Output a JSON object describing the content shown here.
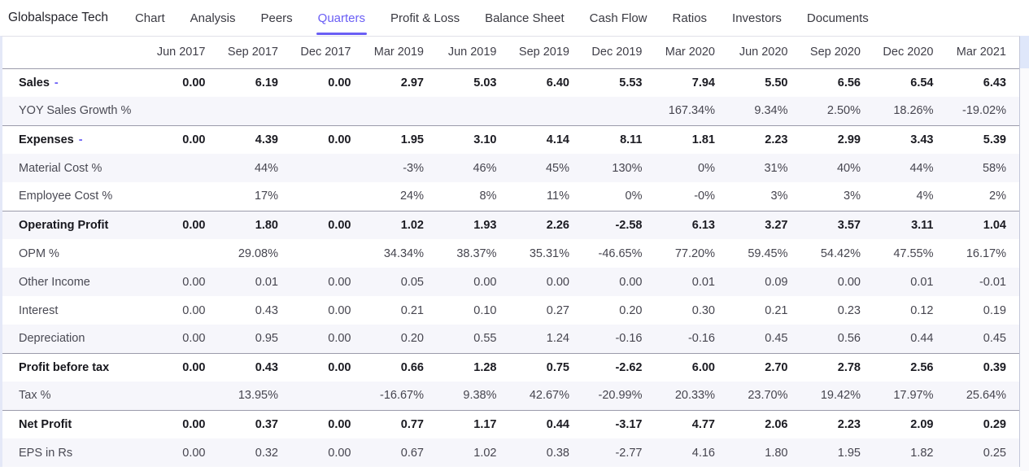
{
  "nav": {
    "company": "Globalspace Tech",
    "tabs": [
      {
        "label": "Chart",
        "active": false
      },
      {
        "label": "Analysis",
        "active": false
      },
      {
        "label": "Peers",
        "active": false
      },
      {
        "label": "Quarters",
        "active": true
      },
      {
        "label": "Profit & Loss",
        "active": false
      },
      {
        "label": "Balance Sheet",
        "active": false
      },
      {
        "label": "Cash Flow",
        "active": false
      },
      {
        "label": "Ratios",
        "active": false
      },
      {
        "label": "Investors",
        "active": false
      },
      {
        "label": "Documents",
        "active": false
      }
    ]
  },
  "table": {
    "columns": [
      "Jun 2017",
      "Sep 2017",
      "Dec 2017",
      "Mar 2019",
      "Jun 2019",
      "Sep 2019",
      "Dec 2019",
      "Mar 2020",
      "Jun 2020",
      "Sep 2020",
      "Dec 2020",
      "Mar 2021"
    ],
    "rows": [
      {
        "label": "Sales",
        "suffix": "-",
        "section": true,
        "values": [
          "0.00",
          "6.19",
          "0.00",
          "2.97",
          "5.03",
          "6.40",
          "5.53",
          "7.94",
          "5.50",
          "6.56",
          "6.54",
          "6.43"
        ]
      },
      {
        "label": "YOY Sales Growth %",
        "section": false,
        "values": [
          "",
          "",
          "",
          "",
          "",
          "",
          "",
          "167.34%",
          "9.34%",
          "2.50%",
          "18.26%",
          "-19.02%"
        ]
      },
      {
        "label": "Expenses",
        "suffix": "-",
        "section": true,
        "values": [
          "0.00",
          "4.39",
          "0.00",
          "1.95",
          "3.10",
          "4.14",
          "8.11",
          "1.81",
          "2.23",
          "2.99",
          "3.43",
          "5.39"
        ]
      },
      {
        "label": "Material Cost %",
        "section": false,
        "values": [
          "",
          "44%",
          "",
          "-3%",
          "46%",
          "45%",
          "130%",
          "0%",
          "31%",
          "40%",
          "44%",
          "58%"
        ]
      },
      {
        "label": "Employee Cost %",
        "section": false,
        "values": [
          "",
          "17%",
          "",
          "24%",
          "8%",
          "11%",
          "0%",
          "-0%",
          "3%",
          "3%",
          "4%",
          "2%"
        ]
      },
      {
        "label": "Operating Profit",
        "section": true,
        "values": [
          "0.00",
          "1.80",
          "0.00",
          "1.02",
          "1.93",
          "2.26",
          "-2.58",
          "6.13",
          "3.27",
          "3.57",
          "3.11",
          "1.04"
        ]
      },
      {
        "label": "OPM %",
        "section": false,
        "values": [
          "",
          "29.08%",
          "",
          "34.34%",
          "38.37%",
          "35.31%",
          "-46.65%",
          "77.20%",
          "59.45%",
          "54.42%",
          "47.55%",
          "16.17%"
        ]
      },
      {
        "label": "Other Income",
        "section": false,
        "values": [
          "0.00",
          "0.01",
          "0.00",
          "0.05",
          "0.00",
          "0.00",
          "0.00",
          "0.01",
          "0.09",
          "0.00",
          "0.01",
          "-0.01"
        ]
      },
      {
        "label": "Interest",
        "section": false,
        "values": [
          "0.00",
          "0.43",
          "0.00",
          "0.21",
          "0.10",
          "0.27",
          "0.20",
          "0.30",
          "0.21",
          "0.23",
          "0.12",
          "0.19"
        ]
      },
      {
        "label": "Depreciation",
        "section": false,
        "values": [
          "0.00",
          "0.95",
          "0.00",
          "0.20",
          "0.55",
          "1.24",
          "-0.16",
          "-0.16",
          "0.45",
          "0.56",
          "0.44",
          "0.45"
        ]
      },
      {
        "label": "Profit before tax",
        "section": true,
        "values": [
          "0.00",
          "0.43",
          "0.00",
          "0.66",
          "1.28",
          "0.75",
          "-2.62",
          "6.00",
          "2.70",
          "2.78",
          "2.56",
          "0.39"
        ]
      },
      {
        "label": "Tax %",
        "section": false,
        "values": [
          "",
          "13.95%",
          "",
          "-16.67%",
          "9.38%",
          "42.67%",
          "-20.99%",
          "20.33%",
          "23.70%",
          "19.42%",
          "17.97%",
          "25.64%"
        ]
      },
      {
        "label": "Net Profit",
        "section": true,
        "values": [
          "0.00",
          "0.37",
          "0.00",
          "0.77",
          "1.17",
          "0.44",
          "-3.17",
          "4.77",
          "2.06",
          "2.23",
          "2.09",
          "0.29"
        ]
      },
      {
        "label": "EPS in Rs",
        "section": false,
        "values": [
          "0.00",
          "0.32",
          "0.00",
          "0.67",
          "1.02",
          "0.38",
          "-2.77",
          "4.16",
          "1.80",
          "1.95",
          "1.82",
          "0.25"
        ]
      }
    ]
  },
  "colors": {
    "accent": "#6a5ef5",
    "stripe": "#f6f6fb",
    "section_border": "#9b9bab"
  }
}
